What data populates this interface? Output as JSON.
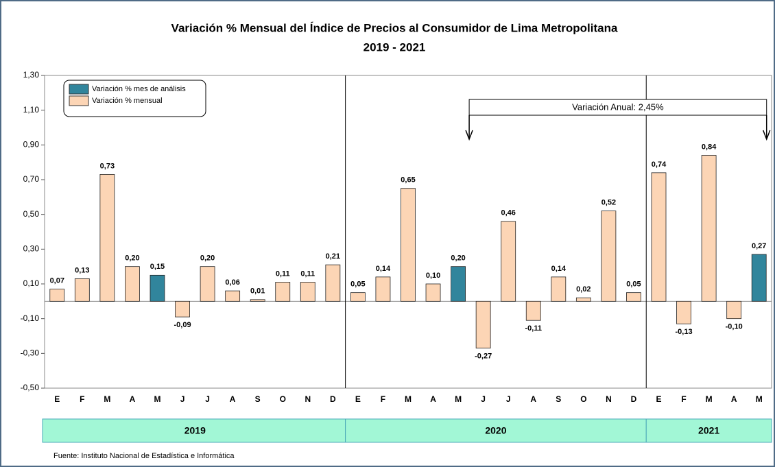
{
  "chart_data": {
    "type": "bar",
    "title": "Variación % Mensual del Índice de Precios al Consumidor de Lima Metropolitana",
    "subtitle": "2019 - 2021",
    "categories": [
      "E",
      "F",
      "M",
      "A",
      "M",
      "J",
      "J",
      "A",
      "S",
      "O",
      "N",
      "D",
      "E",
      "F",
      "M",
      "A",
      "M",
      "J",
      "J",
      "A",
      "S",
      "O",
      "N",
      "D",
      "E",
      "F",
      "M",
      "A",
      "M"
    ],
    "groups": [
      {
        "label": "2019",
        "count": 12
      },
      {
        "label": "2020",
        "count": 12
      },
      {
        "label": "2021",
        "count": 5
      }
    ],
    "series": [
      {
        "name": "Variación % mes de análisis",
        "color": "#31859c",
        "values": [
          null,
          null,
          null,
          null,
          0.15,
          null,
          null,
          null,
          null,
          null,
          null,
          null,
          null,
          null,
          null,
          null,
          0.2,
          null,
          null,
          null,
          null,
          null,
          null,
          null,
          null,
          null,
          null,
          null,
          0.27
        ],
        "value_labels": [
          null,
          null,
          null,
          null,
          "0,15",
          null,
          null,
          null,
          null,
          null,
          null,
          null,
          null,
          null,
          null,
          null,
          "0,20",
          null,
          null,
          null,
          null,
          null,
          null,
          null,
          null,
          null,
          null,
          null,
          "0,27"
        ]
      },
      {
        "name": "Variación % mensual",
        "color": "#fcd5b5",
        "values": [
          0.07,
          0.13,
          0.73,
          0.2,
          null,
          -0.09,
          0.2,
          0.06,
          0.01,
          0.11,
          0.11,
          0.21,
          0.05,
          0.14,
          0.65,
          0.1,
          null,
          -0.27,
          0.46,
          -0.11,
          0.14,
          0.02,
          0.52,
          0.05,
          0.74,
          -0.13,
          0.84,
          -0.1,
          null
        ],
        "value_labels": [
          "0,07",
          "0,13",
          "0,73",
          "0,20",
          null,
          "-0,09",
          "0,20",
          "0,06",
          "0,01",
          "0,11",
          "0,11",
          "0,21",
          "0,05",
          "0,14",
          "0,65",
          "0,10",
          null,
          "-0,27",
          "0,46",
          "-0,11",
          "0,14",
          "0,02",
          "0,52",
          "0,05",
          "0,74",
          "-0,13",
          "0,84",
          "-0,10",
          null
        ]
      }
    ],
    "ylim": [
      -0.5,
      1.3
    ],
    "yticks": [
      {
        "value": -0.5,
        "label": "-0,50"
      },
      {
        "value": -0.3,
        "label": "-0,30"
      },
      {
        "value": -0.1,
        "label": "-0,10"
      },
      {
        "value": 0.1,
        "label": "0,10"
      },
      {
        "value": 0.3,
        "label": "0,30"
      },
      {
        "value": 0.5,
        "label": "0,50"
      },
      {
        "value": 0.7,
        "label": "0,70"
      },
      {
        "value": 0.9,
        "label": "0,90"
      },
      {
        "value": 1.1,
        "label": "1,10"
      },
      {
        "value": 1.3,
        "label": "1,30"
      }
    ],
    "annotation": "Variación Anual: 2,45%",
    "source": "Fuente: Instituto  Nacional de Estadística  e Informática",
    "legend": "upper left"
  }
}
